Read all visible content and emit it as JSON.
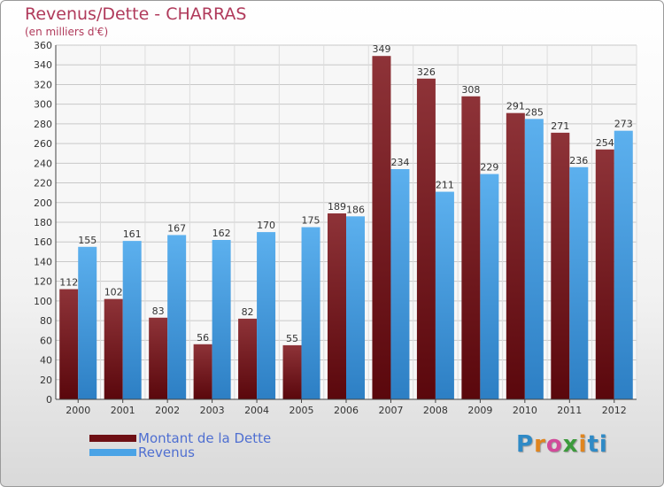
{
  "header": {
    "title": "Revenus/Dette - CHARRAS",
    "subtitle": "(en milliers d'€)"
  },
  "legend": {
    "items": [
      {
        "label": "Montant de la Dette",
        "color": "#6e0f14"
      },
      {
        "label": "Revenus",
        "color": "#4aa3e6"
      }
    ]
  },
  "logo": {
    "text": "Proxiti"
  },
  "chart_data": {
    "type": "bar",
    "title": "Revenus/Dette - CHARRAS",
    "ylabel": "(en milliers d'€)",
    "xlabel": "",
    "categories": [
      "2000",
      "2001",
      "2002",
      "2003",
      "2004",
      "2005",
      "2006",
      "2007",
      "2008",
      "2009",
      "2010",
      "2011",
      "2012"
    ],
    "series": [
      {
        "name": "Montant de la Dette",
        "color": "#6e0f14",
        "values": [
          112,
          102,
          83,
          56,
          82,
          55,
          189,
          349,
          326,
          308,
          291,
          271,
          254
        ]
      },
      {
        "name": "Revenus",
        "color": "#4aa3e6",
        "values": [
          155,
          161,
          167,
          162,
          170,
          175,
          186,
          234,
          211,
          229,
          285,
          236,
          273
        ]
      }
    ],
    "ylim": [
      0,
      360
    ],
    "ytick_step": 20,
    "grid": true,
    "legend_position": "bottom-left"
  }
}
